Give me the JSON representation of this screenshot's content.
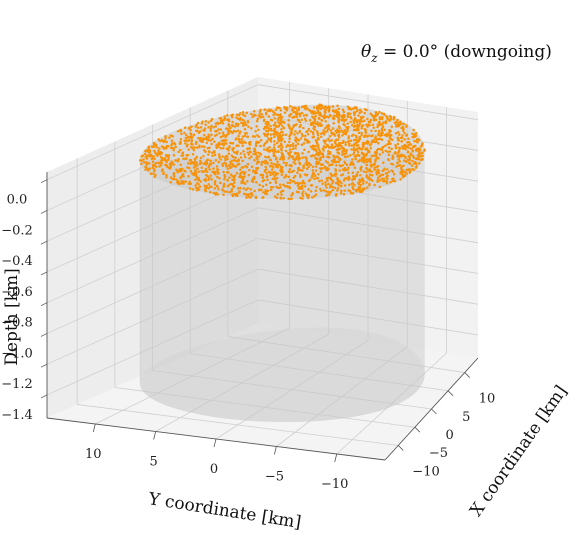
{
  "chart_data": {
    "type": "scatter",
    "projection": "3d",
    "title_parts": {
      "symbol": "θ",
      "subscript": "z",
      "rest": " = 0.0° (downgoing)"
    },
    "xlabel": "X coordinate [km]",
    "ylabel": "Y coordinate [km]",
    "zlabel": "Depth [km]",
    "x_ticks": [
      "−10",
      "−5",
      "0",
      "5",
      "10"
    ],
    "y_ticks": [
      "10",
      "5",
      "0",
      "−5",
      "−10"
    ],
    "z_ticks": [
      "0.0",
      "−0.2",
      "−0.4",
      "−0.6",
      "−0.8",
      "−1.0",
      "−1.2",
      "−1.4"
    ],
    "xlim": [
      -14,
      14
    ],
    "ylim": [
      -14,
      14
    ],
    "zlim": [
      -1.55,
      0.05
    ],
    "cylinder": {
      "radius_km": 12.5,
      "z_top": 0.0,
      "z_bottom": -1.45,
      "color": "#c8c8c8"
    },
    "points": {
      "count": 2400,
      "radius_km": 12.5,
      "depth_km": 0.0,
      "color": "#f7930a"
    },
    "grid": true,
    "pane_color": "#f2f2f2",
    "grid_color": "#cfcfcf"
  }
}
